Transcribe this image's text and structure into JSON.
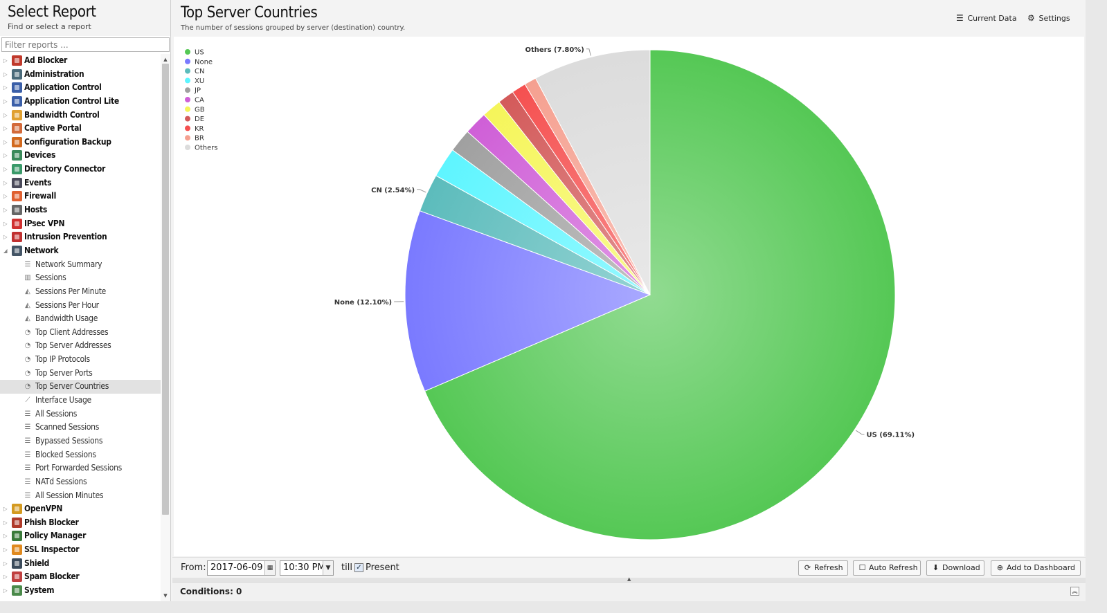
{
  "sidebar": {
    "title": "Select Report",
    "subtitle": "Find or select a report",
    "filter_placeholder": "Filter reports ...",
    "categories": [
      {
        "label": "Ad Blocker",
        "color": "#c0392b",
        "expanded": false
      },
      {
        "label": "Administration",
        "color": "#4a6a7a",
        "expanded": false
      },
      {
        "label": "Application Control",
        "color": "#3b5fa8",
        "expanded": false
      },
      {
        "label": "Application Control Lite",
        "color": "#3b5fa8",
        "expanded": false
      },
      {
        "label": "Bandwidth Control",
        "color": "#e0a030",
        "expanded": false
      },
      {
        "label": "Captive Portal",
        "color": "#d36a3a",
        "expanded": false
      },
      {
        "label": "Configuration Backup",
        "color": "#d2691e",
        "expanded": false
      },
      {
        "label": "Devices",
        "color": "#3a8a5a",
        "expanded": false
      },
      {
        "label": "Directory Connector",
        "color": "#3a9a6a",
        "expanded": false
      },
      {
        "label": "Events",
        "color": "#4a4a5a",
        "expanded": false
      },
      {
        "label": "Firewall",
        "color": "#e06030",
        "expanded": false
      },
      {
        "label": "Hosts",
        "color": "#666666",
        "expanded": false
      },
      {
        "label": "IPsec VPN",
        "color": "#d03030",
        "expanded": false
      },
      {
        "label": "Intrusion Prevention",
        "color": "#c03030",
        "expanded": false
      },
      {
        "label": "Network",
        "color": "#445566",
        "expanded": true,
        "children": [
          {
            "label": "Network Summary",
            "icon": "list-icon"
          },
          {
            "label": "Sessions",
            "icon": "bar-chart-icon"
          },
          {
            "label": "Sessions Per Minute",
            "icon": "area-chart-icon"
          },
          {
            "label": "Sessions Per Hour",
            "icon": "area-chart-icon"
          },
          {
            "label": "Bandwidth Usage",
            "icon": "area-chart-icon"
          },
          {
            "label": "Top Client Addresses",
            "icon": "pie-chart-icon"
          },
          {
            "label": "Top Server Addresses",
            "icon": "pie-chart-icon"
          },
          {
            "label": "Top IP Protocols",
            "icon": "pie-chart-icon"
          },
          {
            "label": "Top Server Ports",
            "icon": "pie-chart-icon"
          },
          {
            "label": "Top Server Countries",
            "icon": "pie-chart-icon",
            "selected": true
          },
          {
            "label": "Interface Usage",
            "icon": "line-chart-icon"
          },
          {
            "label": "All Sessions",
            "icon": "list-icon"
          },
          {
            "label": "Scanned Sessions",
            "icon": "list-icon"
          },
          {
            "label": "Bypassed Sessions",
            "icon": "list-icon"
          },
          {
            "label": "Blocked Sessions",
            "icon": "list-icon"
          },
          {
            "label": "Port Forwarded Sessions",
            "icon": "list-icon"
          },
          {
            "label": "NATd Sessions",
            "icon": "list-icon"
          },
          {
            "label": "All Session Minutes",
            "icon": "list-icon"
          }
        ]
      },
      {
        "label": "OpenVPN",
        "color": "#d49a20",
        "expanded": false
      },
      {
        "label": "Phish Blocker",
        "color": "#b03a2a",
        "expanded": false
      },
      {
        "label": "Policy Manager",
        "color": "#3a7a3a",
        "expanded": false
      },
      {
        "label": "SSL Inspector",
        "color": "#e08a20",
        "expanded": false
      },
      {
        "label": "Shield",
        "color": "#3a4a5a",
        "expanded": false
      },
      {
        "label": "Spam Blocker",
        "color": "#c04040",
        "expanded": false
      },
      {
        "label": "System",
        "color": "#4a8a4a",
        "expanded": false
      }
    ]
  },
  "report": {
    "title": "Top Server Countries",
    "description": "The number of sessions grouped by server (destination) country.",
    "current_data_label": "Current Data",
    "settings_label": "Settings"
  },
  "chart_data": {
    "type": "pie",
    "title": "",
    "legend_position": "top-left",
    "slices": [
      {
        "label": "US",
        "value": 69.11,
        "color": "#55c855",
        "show_label": true
      },
      {
        "label": "None",
        "value": 12.1,
        "color": "#7a7aff",
        "show_label": true
      },
      {
        "label": "CN",
        "value": 2.54,
        "color": "#5cbcbc",
        "show_label": true
      },
      {
        "label": "XU",
        "value": 2.0,
        "color": "#5ef5ff",
        "show_label": false
      },
      {
        "label": "JP",
        "value": 1.55,
        "color": "#a0a0a0",
        "show_label": false
      },
      {
        "label": "CA",
        "value": 1.55,
        "color": "#cf5fd7",
        "show_label": false
      },
      {
        "label": "GB",
        "value": 1.3,
        "color": "#f5f55a",
        "show_label": false
      },
      {
        "label": "DE",
        "value": 1.1,
        "color": "#d35a5a",
        "show_label": false
      },
      {
        "label": "KR",
        "value": 0.95,
        "color": "#f55050",
        "show_label": false
      },
      {
        "label": "BR",
        "value": 0.8,
        "color": "#f5a090",
        "show_label": false
      },
      {
        "label": "Others",
        "value": 7.8,
        "color": "#dcdcdc",
        "show_label": true
      }
    ]
  },
  "toolbar": {
    "from_label": "From:",
    "date_value": "2017-06-09",
    "time_value": "10:30 PM",
    "till_label": "till",
    "present_label": "Present",
    "present_checked": true,
    "refresh_label": "Refresh",
    "auto_refresh_label": "Auto Refresh",
    "download_label": "Download",
    "add_dashboard_label": "Add to Dashboard"
  },
  "conditions": {
    "label": "Conditions: 0"
  }
}
